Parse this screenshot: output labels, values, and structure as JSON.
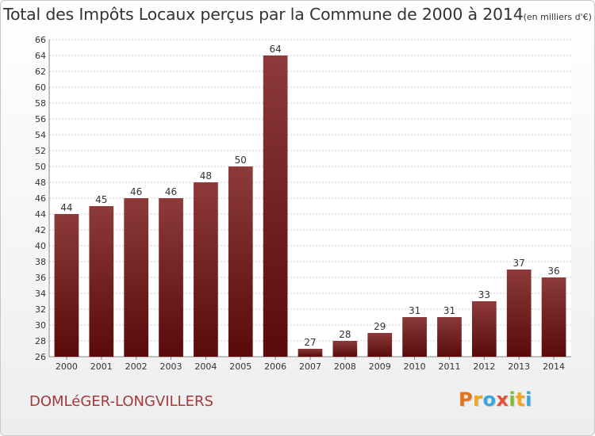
{
  "header": {
    "title": "Total des Impôts Locaux perçus par la Commune de 2000 à 2014",
    "subtitle": "(en milliers d'€)"
  },
  "footer": {
    "commune": "DOMLéGER-LONGVILLERS",
    "brand": "Proxiti",
    "brand_letters": [
      {
        "ch": "P",
        "color": "#e5731a"
      },
      {
        "ch": "r",
        "color": "#f2a51e"
      },
      {
        "ch": "o",
        "color": "#39a7de"
      },
      {
        "ch": "x",
        "color": "#e94e3a"
      },
      {
        "ch": "i",
        "color": "#7cbd32"
      },
      {
        "ch": "t",
        "color": "#f2a51e"
      },
      {
        "ch": "i",
        "color": "#39a7de"
      }
    ]
  },
  "colors": {
    "bar_top": "#8c3a3a",
    "bar_bottom": "#5a0a0a",
    "text": "#333333",
    "commune": "#a23b3b"
  },
  "chart_data": {
    "type": "bar",
    "categories": [
      "2000",
      "2001",
      "2002",
      "2003",
      "2004",
      "2005",
      "2006",
      "2007",
      "2008",
      "2009",
      "2010",
      "2011",
      "2012",
      "2013",
      "2014"
    ],
    "values": [
      44,
      45,
      46,
      46,
      48,
      50,
      64,
      27,
      28,
      29,
      31,
      31,
      33,
      37,
      36
    ],
    "ylim": [
      26,
      66
    ],
    "ytick_step": 2,
    "grid": true,
    "legend": "none",
    "data_labels": true
  }
}
